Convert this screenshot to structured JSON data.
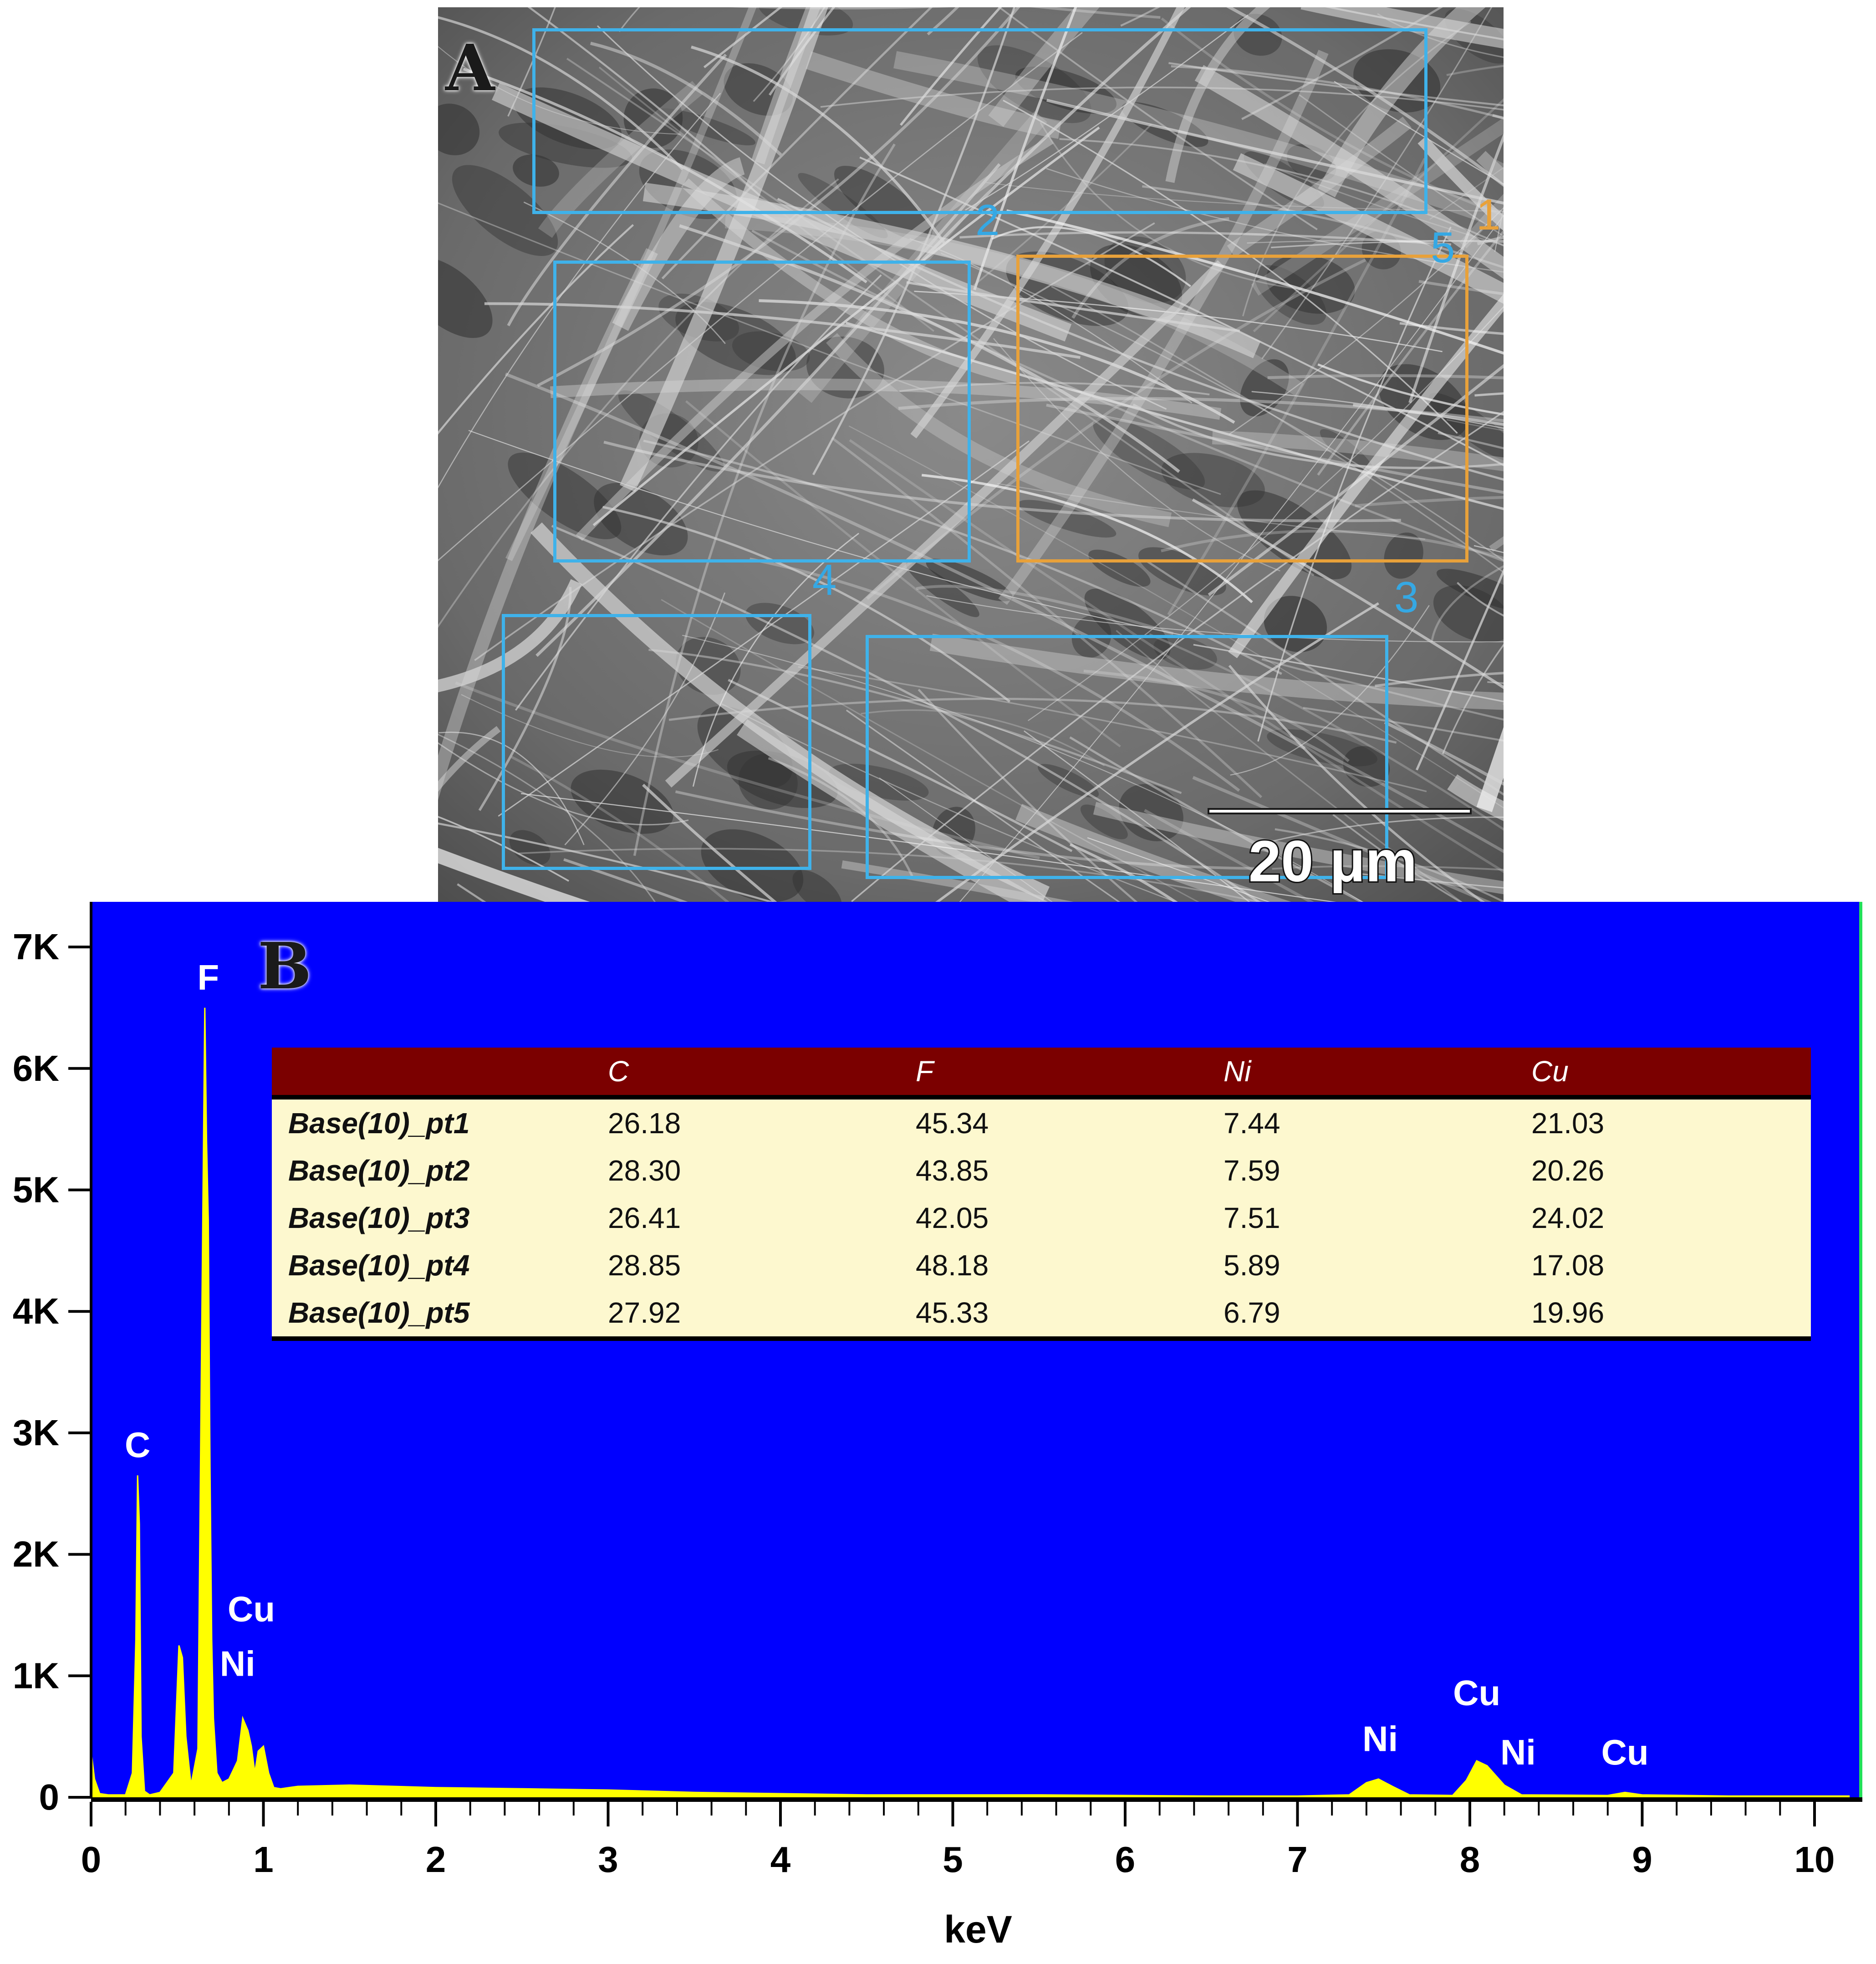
{
  "panel_a": {
    "label": "A",
    "scale_bar": "20 μm",
    "regions": [
      {
        "id": "2",
        "color": "#3fb2ea"
      },
      {
        "id": "1",
        "color": "#e8a13a"
      },
      {
        "id": "5",
        "color": "#3fb2ea"
      },
      {
        "id": "4",
        "color": "#3fb2ea"
      },
      {
        "id": "3",
        "color": "#3fb2ea"
      }
    ]
  },
  "panel_b": {
    "label": "B",
    "table": {
      "columns": [
        "",
        "C",
        "F",
        "Ni",
        "Cu"
      ],
      "rows": [
        {
          "name": "Base(10)_pt1",
          "values": [
            "26.18",
            "45.34",
            "7.44",
            "21.03"
          ]
        },
        {
          "name": "Base(10)_pt2",
          "values": [
            "28.30",
            "43.85",
            "7.59",
            "20.26"
          ]
        },
        {
          "name": "Base(10)_pt3",
          "values": [
            "26.41",
            "42.05",
            "7.51",
            "24.02"
          ]
        },
        {
          "name": "Base(10)_pt4",
          "values": [
            "28.85",
            "48.18",
            "5.89",
            "17.08"
          ]
        },
        {
          "name": "Base(10)_pt5",
          "values": [
            "27.92",
            "45.33",
            "6.79",
            "19.96"
          ]
        }
      ]
    }
  },
  "chart_data": {
    "type": "area",
    "title": "",
    "xlabel": "keV",
    "ylabel": "",
    "xlim": [
      0,
      10.2
    ],
    "ylim": [
      0,
      7000
    ],
    "x_ticks": [
      0,
      1,
      2,
      3,
      4,
      5,
      6,
      7,
      8,
      9,
      10
    ],
    "x_tick_labels": [
      "0",
      "1",
      "2",
      "3",
      "4",
      "5",
      "6",
      "7",
      "8",
      "9",
      "10"
    ],
    "y_ticks": [
      0,
      1000,
      2000,
      3000,
      4000,
      5000,
      6000,
      7000
    ],
    "y_tick_labels": [
      "0",
      "1K",
      "2K",
      "3K",
      "4K",
      "5K",
      "6K",
      "7K"
    ],
    "background_color": "#0000ff",
    "spectrum_color": "#ffff00",
    "series": [
      {
        "x": [
          0.0,
          0.02,
          0.05,
          0.1,
          0.2,
          0.24,
          0.26,
          0.27,
          0.28,
          0.29,
          0.31,
          0.34,
          0.4,
          0.48,
          0.51,
          0.53,
          0.55,
          0.58,
          0.62,
          0.64,
          0.66,
          0.67,
          0.68,
          0.69,
          0.7,
          0.71,
          0.73,
          0.76,
          0.8,
          0.85,
          0.88,
          0.91,
          0.93,
          0.95,
          0.97,
          1.0,
          1.03,
          1.06,
          1.1,
          1.2,
          1.5,
          2.0,
          2.5,
          3.0,
          3.5,
          4.0,
          4.5,
          5.0,
          5.5,
          6.0,
          6.5,
          7.0,
          7.3,
          7.4,
          7.47,
          7.55,
          7.65,
          7.9,
          7.98,
          8.04,
          8.1,
          8.2,
          8.3,
          8.8,
          8.9,
          9.0,
          9.5,
          10.2
        ],
        "y": [
          380,
          150,
          30,
          20,
          20,
          200,
          1300,
          2650,
          2250,
          500,
          50,
          20,
          40,
          200,
          1250,
          1150,
          500,
          100,
          400,
          3500,
          6500,
          5400,
          4750,
          2700,
          1300,
          650,
          200,
          120,
          150,
          300,
          650,
          550,
          420,
          200,
          380,
          420,
          200,
          80,
          70,
          90,
          100,
          80,
          70,
          60,
          40,
          30,
          20,
          20,
          20,
          15,
          10,
          10,
          20,
          120,
          150,
          90,
          20,
          15,
          140,
          300,
          260,
          100,
          20,
          15,
          40,
          20,
          10,
          10
        ]
      }
    ],
    "peak_labels": [
      {
        "text": "C",
        "x": 0.27,
        "y": 2650
      },
      {
        "text": "F",
        "x": 0.68,
        "y": 6500
      },
      {
        "text": "Cu",
        "x": 0.93,
        "y": 1300
      },
      {
        "text": "Ni",
        "x": 0.85,
        "y": 850
      },
      {
        "text": "Ni",
        "x": 7.48,
        "y": 230
      },
      {
        "text": "Cu",
        "x": 8.04,
        "y": 610
      },
      {
        "text": "Ni",
        "x": 8.28,
        "y": 120
      },
      {
        "text": "Cu",
        "x": 8.9,
        "y": 120
      }
    ]
  }
}
